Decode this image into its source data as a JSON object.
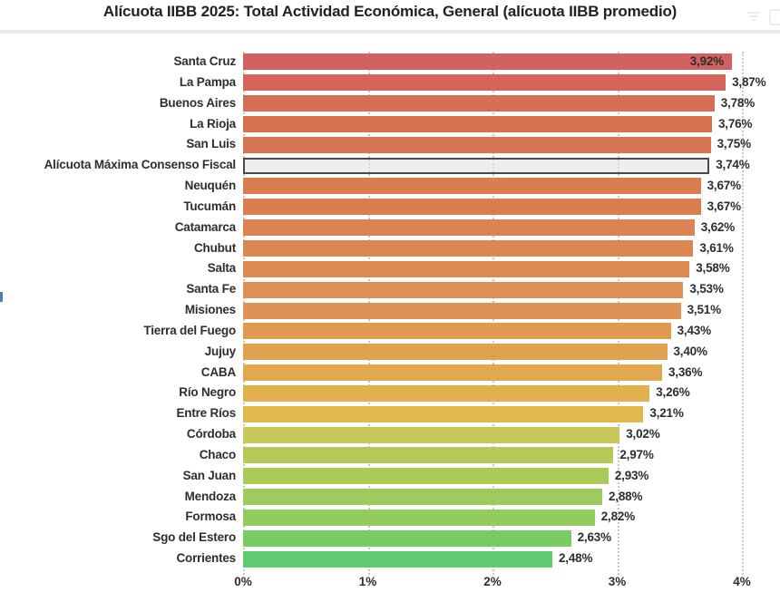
{
  "header": {
    "title": "Alícuota IIBB 2025: Total Actividad Económica, General (alícuota IIBB promedio)",
    "icons": [
      "filter-icon",
      "focus-mode-icon"
    ]
  },
  "chart_data": {
    "type": "bar",
    "orientation": "horizontal",
    "title": "Alícuota IIBB 2025: Total Actividad Económica, General (alícuota IIBB promedio)",
    "xlabel": "",
    "ylabel": "",
    "xlim": [
      0,
      4
    ],
    "x_ticks": [
      {
        "value": 0,
        "label": "0%"
      },
      {
        "value": 1,
        "label": "1%"
      },
      {
        "value": 2,
        "label": "2%"
      },
      {
        "value": 3,
        "label": "3%"
      },
      {
        "value": 4,
        "label": "4%"
      }
    ],
    "grid": "dotted-vertical",
    "value_labels_visible": true,
    "categories": [
      "Santa Cruz",
      "La Pampa",
      "Buenos Aires",
      "La Rioja",
      "San Luis",
      "Alícuota Máxima Consenso Fiscal",
      "Neuquén",
      "Tucumán",
      "Catamarca",
      "Chubut",
      "Salta",
      "Santa Fe",
      "Misiones",
      "Tierra del Fuego",
      "Jujuy",
      "CABA",
      "Río Negro",
      "Entre Ríos",
      "Córdoba",
      "Chaco",
      "San Juan",
      "Mendoza",
      "Formosa",
      "Sgo del Estero",
      "Corrientes"
    ],
    "values": [
      3.92,
      3.87,
      3.78,
      3.76,
      3.75,
      3.74,
      3.67,
      3.67,
      3.62,
      3.61,
      3.58,
      3.53,
      3.51,
      3.43,
      3.4,
      3.36,
      3.26,
      3.21,
      3.02,
      2.97,
      2.93,
      2.88,
      2.82,
      2.63,
      2.48
    ],
    "value_labels": [
      "3,92%",
      "3,87%",
      "3,78%",
      "3,76%",
      "3,75%",
      "3,74%",
      "3,67%",
      "3,67%",
      "3,62%",
      "3,61%",
      "3,58%",
      "3,53%",
      "3,51%",
      "3,43%",
      "3,40%",
      "3,36%",
      "3,26%",
      "3,21%",
      "3,02%",
      "2,97%",
      "2,93%",
      "2,88%",
      "2,82%",
      "2,63%",
      "2,48%"
    ],
    "bar_colors": [
      "#d4605f",
      "#d4655b",
      "#d56e55",
      "#d77351",
      "#d87550",
      "highlight",
      "#da7d51",
      "#da7e50",
      "#db8352",
      "#dc8653",
      "#dd8a52",
      "#de8f55",
      "#df9256",
      "#e09b53",
      "#e0a251",
      "#e1a94f",
      "#e2b14d",
      "#e1b94b",
      "#c8c759",
      "#b6c857",
      "#aaca5a",
      "#9fcb5e",
      "#92cb60",
      "#79cb63",
      "#5fcb6e"
    ],
    "highlight_row": {
      "category": "Alícuota Máxima Consenso Fiscal",
      "fill": "#e6e4e2",
      "border": "#4a4a4a"
    },
    "first_value_label_position": "inside-bar-end",
    "gridline_color": "#c9c7c5",
    "label_text_color": "#2e2e2e"
  }
}
